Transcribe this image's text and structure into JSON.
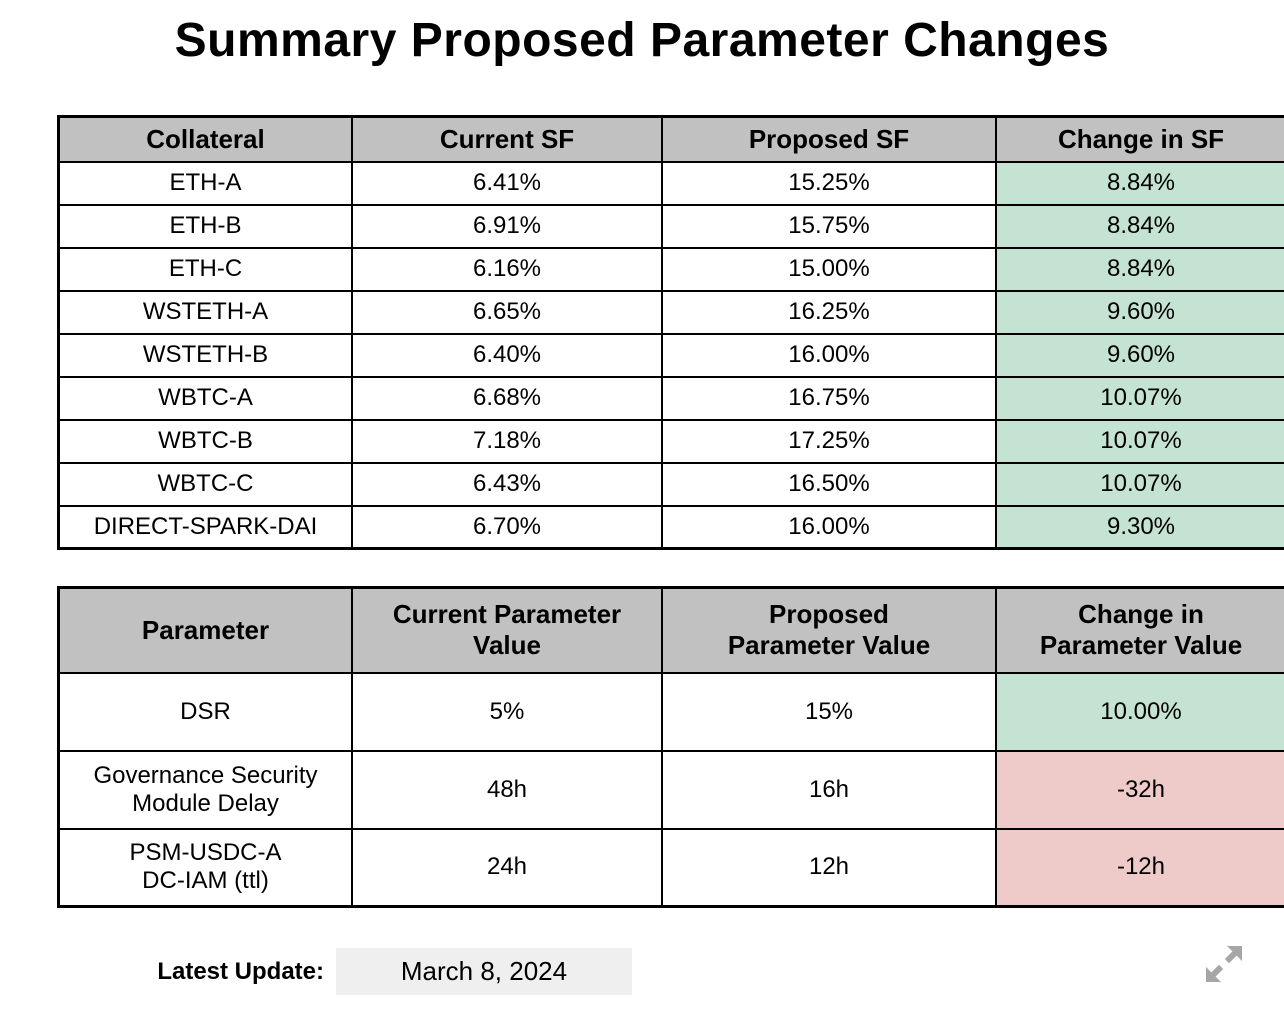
{
  "page": {
    "title": "Summary Proposed Parameter Changes"
  },
  "sf_table": {
    "headers": [
      "Collateral",
      "Current SF",
      "Proposed SF",
      "Change in SF"
    ],
    "rows": [
      {
        "collateral": "ETH-A",
        "current": "6.41%",
        "proposed": "15.25%",
        "change": "8.84%",
        "trend": "positive"
      },
      {
        "collateral": "ETH-B",
        "current": "6.91%",
        "proposed": "15.75%",
        "change": "8.84%",
        "trend": "positive"
      },
      {
        "collateral": "ETH-C",
        "current": "6.16%",
        "proposed": "15.00%",
        "change": "8.84%",
        "trend": "positive"
      },
      {
        "collateral": "WSTETH-A",
        "current": "6.65%",
        "proposed": "16.25%",
        "change": "9.60%",
        "trend": "positive"
      },
      {
        "collateral": "WSTETH-B",
        "current": "6.40%",
        "proposed": "16.00%",
        "change": "9.60%",
        "trend": "positive"
      },
      {
        "collateral": "WBTC-A",
        "current": "6.68%",
        "proposed": "16.75%",
        "change": "10.07%",
        "trend": "positive"
      },
      {
        "collateral": "WBTC-B",
        "current": "7.18%",
        "proposed": "17.25%",
        "change": "10.07%",
        "trend": "positive"
      },
      {
        "collateral": "WBTC-C",
        "current": "6.43%",
        "proposed": "16.50%",
        "change": "10.07%",
        "trend": "positive"
      },
      {
        "collateral": "DIRECT-SPARK-DAI",
        "current": "6.70%",
        "proposed": "16.00%",
        "change": "9.30%",
        "trend": "positive"
      }
    ]
  },
  "param_table": {
    "headers": [
      "Parameter",
      "Current Parameter\nValue",
      "Proposed\nParameter Value",
      "Change in\nParameter Value"
    ],
    "rows": [
      {
        "parameter": "DSR",
        "current": "5%",
        "proposed": "15%",
        "change": "10.00%",
        "trend": "positive"
      },
      {
        "parameter": "Governance Security\nModule Delay",
        "current": "48h",
        "proposed": "16h",
        "change": "-32h",
        "trend": "negative"
      },
      {
        "parameter": "PSM-USDC-A\nDC-IAM (ttl)",
        "current": "24h",
        "proposed": "12h",
        "change": "-12h",
        "trend": "negative"
      }
    ]
  },
  "footer": {
    "label": "Latest Update:",
    "date": "March 8, 2024"
  },
  "icons": {
    "expand": "expand-icon"
  },
  "colors": {
    "header_bg": "#c1c1c1",
    "positive_bg": "#c5e3d2",
    "negative_bg": "#eecac8",
    "date_bg": "#efefef",
    "border": "#000000",
    "expand_icon": "#a6a6a6"
  }
}
